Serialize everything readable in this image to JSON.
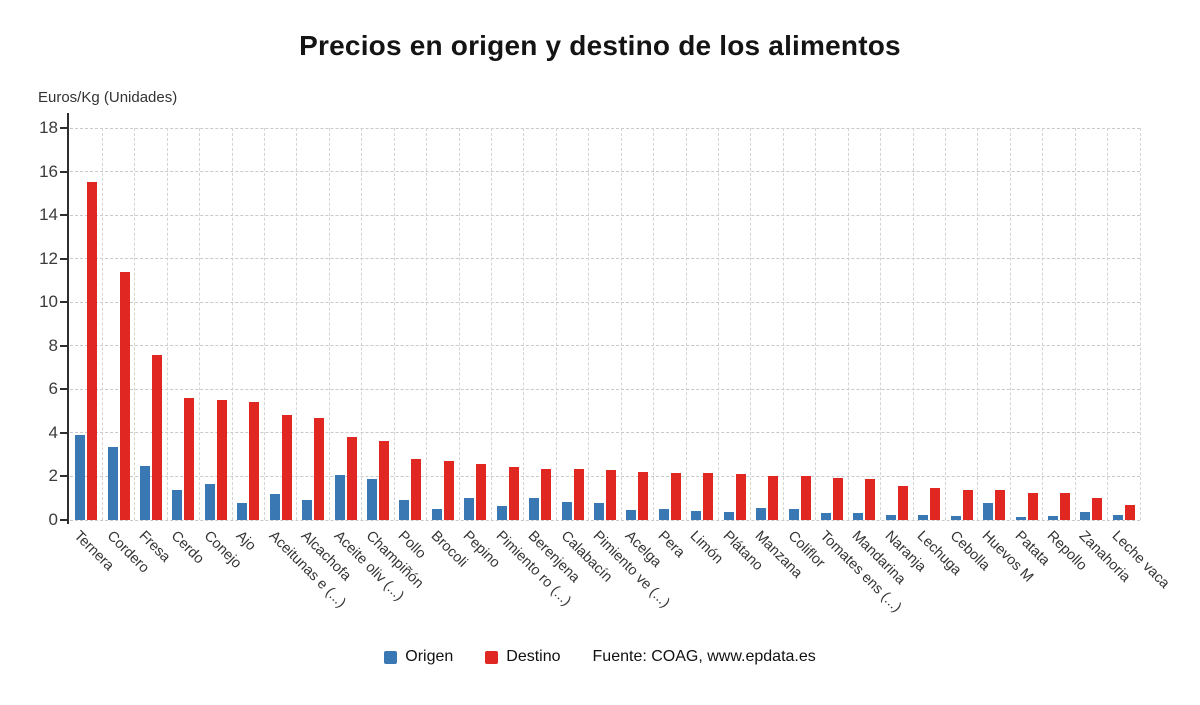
{
  "chart_data": {
    "type": "bar",
    "title": "Precios en origen y destino de los alimentos",
    "ylabel": "Euros/Kg (Unidades)",
    "xlabel": "",
    "ylim": [
      0,
      18
    ],
    "ytick_step": 2,
    "grid": true,
    "legend_position": "bottom",
    "source": "Fuente: COAG, www.epdata.es",
    "categories": [
      "Ternera",
      "Cordero",
      "Fresa",
      "Cerdo",
      "Conejo",
      "Ajo",
      "Aceitunas e (...)",
      "Alcachofa",
      "Aceite oliv (...)",
      "Champiñón",
      "Pollo",
      "Brocoli",
      "Pepino",
      "Pimiento ro (...)",
      "Berenjena",
      "Calabacín",
      "Pimiento ve (...)",
      "Acelga",
      "Pera",
      "Limón",
      "Plátano",
      "Manzana",
      "Coliflor",
      "Tomates ens (...)",
      "Mandarina",
      "Naranja",
      "Lechuga",
      "Cebolla",
      "Huevos M",
      "Patata",
      "Repollo",
      "Zanahoria",
      "Leche vaca"
    ],
    "series": [
      {
        "name": "Origen",
        "color": "#3a78b3",
        "values": [
          3.9,
          3.35,
          2.5,
          1.4,
          1.65,
          0.8,
          1.2,
          0.9,
          2.05,
          1.9,
          0.9,
          0.5,
          1.0,
          0.65,
          1.0,
          0.85,
          0.8,
          0.45,
          0.5,
          0.4,
          0.35,
          0.55,
          0.5,
          0.3,
          0.3,
          0.25,
          0.25,
          0.2,
          0.8,
          0.15,
          0.2,
          0.35,
          0.25
        ]
      },
      {
        "name": "Destino",
        "color": "#e12722",
        "values": [
          15.5,
          11.4,
          7.6,
          5.6,
          5.5,
          5.4,
          4.8,
          4.7,
          3.8,
          3.65,
          2.8,
          2.7,
          2.55,
          2.45,
          2.35,
          2.35,
          2.3,
          2.2,
          2.15,
          2.15,
          2.1,
          2.0,
          2.0,
          1.95,
          1.9,
          1.55,
          1.45,
          1.4,
          1.4,
          1.25,
          1.25,
          1.0,
          0.7
        ]
      }
    ],
    "colors": {
      "grid": "#c9c9c9",
      "axis": "#2e2e2e"
    }
  }
}
